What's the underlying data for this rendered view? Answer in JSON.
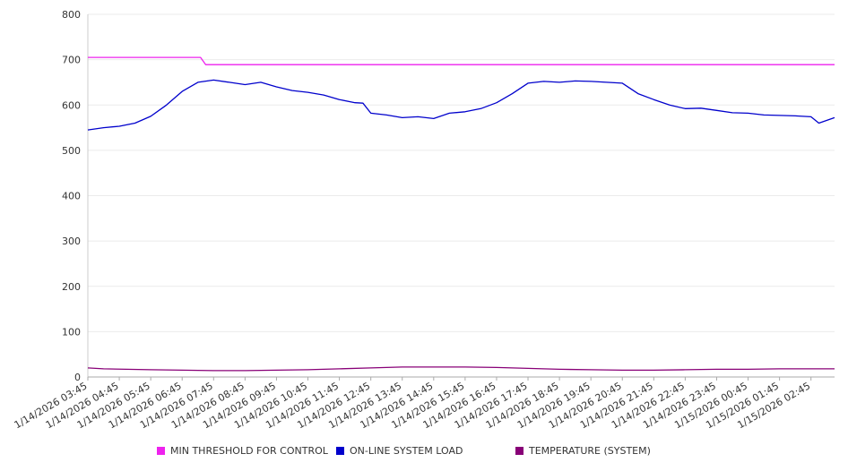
{
  "chart_data": {
    "type": "line",
    "ylim": [
      0,
      800
    ],
    "y_ticks": [
      "800",
      "700",
      "600",
      "500",
      "400",
      "300",
      "200",
      "100",
      "0"
    ],
    "grid": "horizontal",
    "legend_position": "bottom",
    "x_ticks": [
      "1/14/2026 03:45",
      "1/14/2026 04:45",
      "1/14/2026 05:45",
      "1/14/2026 06:45",
      "1/14/2026 07:45",
      "1/14/2026 08:45",
      "1/14/2026 09:45",
      "1/14/2026 10:45",
      "1/14/2026 11:45",
      "1/14/2026 12:45",
      "1/14/2026 13:45",
      "1/14/2026 14:45",
      "1/14/2026 15:45",
      "1/14/2026 16:45",
      "1/14/2026 17:45",
      "1/14/2026 18:45",
      "1/14/2026 19:45",
      "1/14/2026 20:45",
      "1/14/2026 21:45",
      "1/14/2026 22:45",
      "1/14/2026 23:45",
      "1/15/2026 00:45",
      "1/15/2026 01:45",
      "1/15/2026 02:45"
    ],
    "x_range": [
      "1/14/2026 03:45",
      "1/15/2026 03:30"
    ],
    "series": [
      {
        "name": "MIN THRESHOLD FOR CONTROL",
        "color": "#ee22ee",
        "x": [
          "1/14/2026 03:45",
          "1/14/2026 07:20",
          "1/14/2026 07:30",
          "1/15/2026 03:30"
        ],
        "y": [
          705,
          705,
          689,
          689
        ]
      },
      {
        "name": "ON-LINE SYSTEM LOAD",
        "color": "#0000cc",
        "x": [
          "1/14/2026 03:45",
          "1/14/2026 04:15",
          "1/14/2026 04:45",
          "1/14/2026 05:15",
          "1/14/2026 05:45",
          "1/14/2026 06:15",
          "1/14/2026 06:45",
          "1/14/2026 07:15",
          "1/14/2026 07:45",
          "1/14/2026 08:15",
          "1/14/2026 08:45",
          "1/14/2026 09:15",
          "1/14/2026 09:45",
          "1/14/2026 10:15",
          "1/14/2026 10:45",
          "1/14/2026 11:15",
          "1/14/2026 11:45",
          "1/14/2026 12:15",
          "1/14/2026 12:30",
          "1/14/2026 12:45",
          "1/14/2026 13:15",
          "1/14/2026 13:45",
          "1/14/2026 14:15",
          "1/14/2026 14:45",
          "1/14/2026 15:15",
          "1/14/2026 15:45",
          "1/14/2026 16:15",
          "1/14/2026 16:45",
          "1/14/2026 17:15",
          "1/14/2026 17:45",
          "1/14/2026 18:15",
          "1/14/2026 18:45",
          "1/14/2026 19:15",
          "1/14/2026 19:45",
          "1/14/2026 20:15",
          "1/14/2026 20:45",
          "1/14/2026 21:15",
          "1/14/2026 21:45",
          "1/14/2026 22:15",
          "1/14/2026 22:45",
          "1/14/2026 23:15",
          "1/14/2026 23:45",
          "1/15/2026 00:15",
          "1/15/2026 00:45",
          "1/15/2026 01:15",
          "1/15/2026 01:45",
          "1/15/2026 02:15",
          "1/15/2026 02:45",
          "1/15/2026 03:00",
          "1/15/2026 03:30"
        ],
        "y": [
          545,
          550,
          553,
          560,
          575,
          600,
          630,
          650,
          655,
          650,
          645,
          650,
          640,
          632,
          628,
          622,
          612,
          605,
          604,
          582,
          578,
          572,
          574,
          570,
          582,
          585,
          592,
          605,
          625,
          648,
          652,
          650,
          653,
          652,
          650,
          648,
          625,
          612,
          600,
          592,
          593,
          588,
          583,
          582,
          578,
          577,
          576,
          574,
          560,
          572
        ]
      },
      {
        "name": "TEMPERATURE (SYSTEM)",
        "color": "#880077",
        "x": [
          "1/14/2026 03:45",
          "1/14/2026 04:15",
          "1/14/2026 05:45",
          "1/14/2026 06:45",
          "1/14/2026 07:45",
          "1/14/2026 08:45",
          "1/14/2026 09:45",
          "1/14/2026 10:45",
          "1/14/2026 11:45",
          "1/14/2026 12:45",
          "1/14/2026 13:45",
          "1/14/2026 14:45",
          "1/14/2026 15:45",
          "1/14/2026 16:45",
          "1/14/2026 17:45",
          "1/14/2026 18:45",
          "1/14/2026 19:45",
          "1/14/2026 20:45",
          "1/14/2026 21:45",
          "1/14/2026 22:45",
          "1/14/2026 23:45",
          "1/15/2026 00:45",
          "1/15/2026 01:45",
          "1/15/2026 02:45",
          "1/15/2026 03:30"
        ],
        "y": [
          20,
          18,
          16,
          15,
          14,
          14,
          15,
          16,
          18,
          20,
          22,
          22,
          22,
          21,
          19,
          17,
          16,
          15,
          15,
          16,
          17,
          17,
          18,
          18,
          18
        ]
      }
    ]
  }
}
